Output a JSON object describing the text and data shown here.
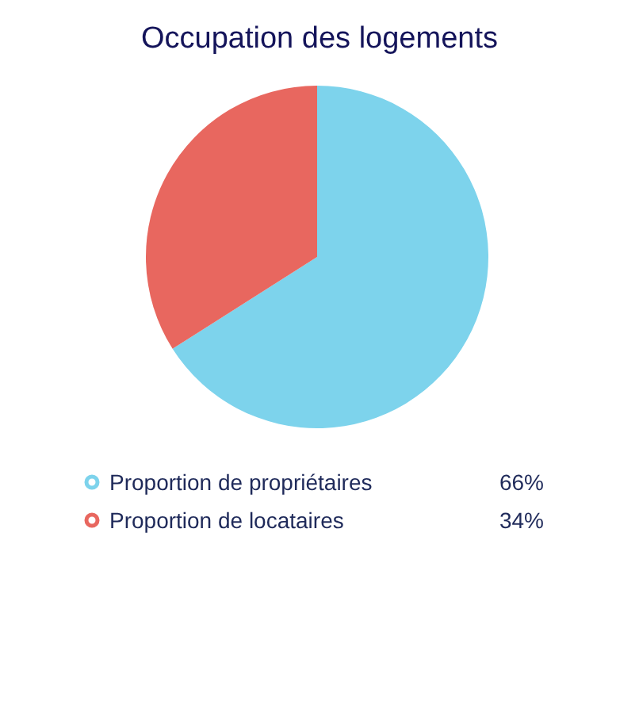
{
  "chart_data": {
    "type": "pie",
    "title": "Occupation des logements",
    "categories": [
      "Proportion de propriétaires",
      "Proportion de locataires"
    ],
    "values": [
      66,
      34
    ],
    "colors": [
      "#7dd3ec",
      "#e8675f"
    ],
    "value_labels": [
      "66%",
      "34%"
    ],
    "legend": "bottom"
  }
}
